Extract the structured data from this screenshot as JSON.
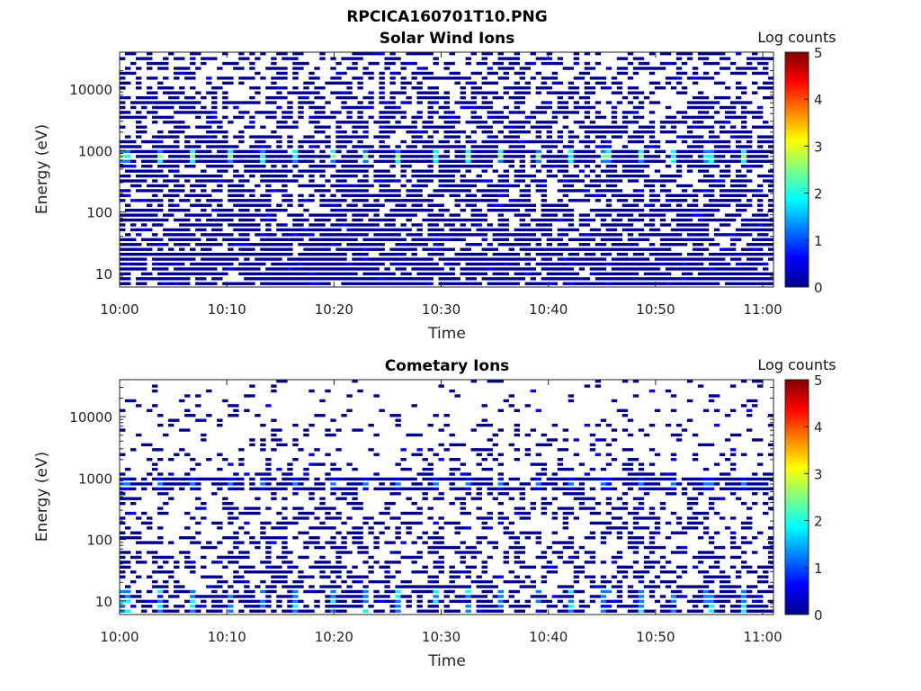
{
  "figure": {
    "title": "RPCICA160701T10.PNG"
  },
  "colormap": [
    "#00008f",
    "#0000ff",
    "#0080ff",
    "#00ffff",
    "#80ff80",
    "#ffff00",
    "#ff8000",
    "#ff0000",
    "#800000"
  ],
  "chart_data": [
    {
      "type": "heatmap",
      "title": "Solar Wind Ions",
      "xlabel": "Time",
      "ylabel": "Energy (eV)",
      "xticks": [
        "10:00",
        "10:10",
        "10:20",
        "10:30",
        "10:40",
        "10:50",
        "11:00"
      ],
      "yticks": [
        "10",
        "100",
        "1000",
        "10000"
      ],
      "yscale": "log",
      "ylim": [
        6,
        40000
      ],
      "xlim": [
        "10:00",
        "11:01"
      ],
      "colorbar": {
        "label": "Log counts",
        "ticks": [
          "0",
          "1",
          "2",
          "3",
          "4",
          "5"
        ],
        "range": [
          0,
          5
        ]
      },
      "features": {
        "noise_density_high_energy": 0.45,
        "noise_density_low_energy": 0.85,
        "solar_wind_peak_energy_eV": 700,
        "peak_log_counts": 2.6,
        "peak_period_minutes": 3.2
      }
    },
    {
      "type": "heatmap",
      "title": "Cometary Ions",
      "xlabel": "Time",
      "ylabel": "Energy (eV)",
      "xticks": [
        "10:00",
        "10:10",
        "10:20",
        "10:30",
        "10:40",
        "10:50",
        "11:00"
      ],
      "yticks": [
        "10",
        "100",
        "1000",
        "10000"
      ],
      "yscale": "log",
      "ylim": [
        6,
        40000
      ],
      "xlim": [
        "10:00",
        "11:01"
      ],
      "colorbar": {
        "label": "Log counts",
        "ticks": [
          "0",
          "1",
          "2",
          "3",
          "4",
          "5"
        ],
        "range": [
          0,
          5
        ]
      },
      "features": {
        "noise_density_high_energy": 0.06,
        "noise_density_low_energy": 0.55,
        "solar_wind_peak_energy_eV": 700,
        "peak_log_counts": 1.2,
        "low_energy_peak_log_counts": 1.8,
        "peak_period_minutes": 3.2
      }
    }
  ]
}
